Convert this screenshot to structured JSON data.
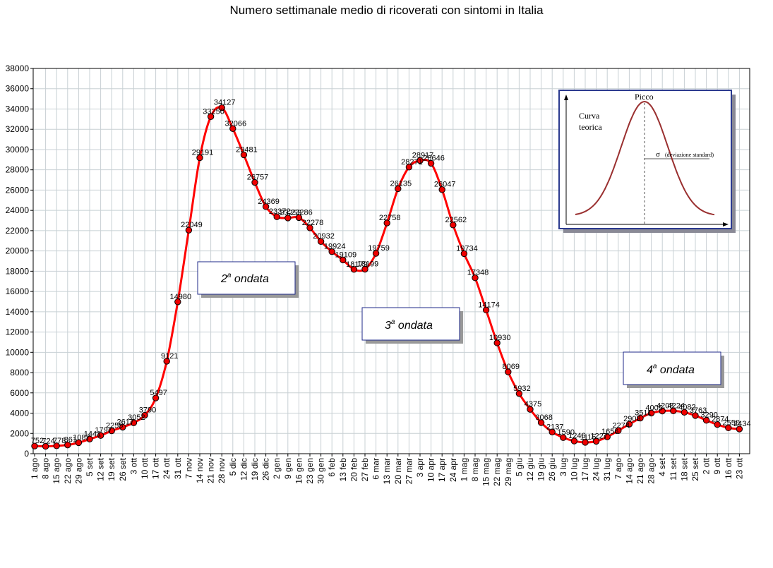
{
  "chart_data": {
    "type": "line",
    "title": "Numero settimanale medio di ricoverati con sintomi in Italia",
    "xlabel": "",
    "ylabel": "",
    "ylim": [
      0,
      38000
    ],
    "ytick_step": 2000,
    "grid": true,
    "categories": [
      "1 ago",
      "8 ago",
      "15 ago",
      "22 ago",
      "29 ago",
      "5 set",
      "12 set",
      "19 set",
      "26 set",
      "3 ott",
      "10 ott",
      "17 ott",
      "24 ott",
      "31 ott",
      "7 nov",
      "14 nov",
      "21 nov",
      "28 nov",
      "5 dic",
      "12 dic",
      "19 dic",
      "26 dic",
      "2 gen",
      "9 gen",
      "16 gen",
      "23 gen",
      "30 gen",
      "6 feb",
      "13 feb",
      "20 feb",
      "27 feb",
      "6 mar",
      "13 mar",
      "20 mar",
      "27 mar",
      "3 apr",
      "10 apr",
      "17 apr",
      "24 apr",
      "1 mag",
      "8 mag",
      "15 mag",
      "22 mag",
      "29 mag",
      "5 giu",
      "12 giu",
      "19 giu",
      "26 giu",
      "3 lug",
      "10 lug",
      "17 lug",
      "24 lug",
      "31 lug",
      "7 ago",
      "14 ago",
      "21 ago",
      "28 ago",
      "4 set",
      "11 set",
      "18 set",
      "25 set",
      "2 ott",
      "9 ott",
      "16 ott",
      "23 ott"
    ],
    "series": [
      {
        "values": [
          752,
          724,
          778,
          861,
          1087,
          1441,
          1797,
          2255,
          2617,
          3052,
          3790,
          5497,
          9121,
          14980,
          22049,
          29191,
          33250,
          34127,
          32066,
          29481,
          26757,
          24369,
          23372,
          23253,
          23286,
          22278,
          20932,
          19924,
          19109,
          18179,
          18199,
          19759,
          22758,
          26135,
          28271,
          28917,
          28646,
          26047,
          22562,
          19734,
          17348,
          14174,
          10930,
          8069,
          5932,
          4375,
          3068,
          2137,
          1590,
          1246,
          1115,
          1227,
          1656,
          2274,
          2908,
          3511,
          4005,
          4208,
          4224,
          4082,
          3763,
          3290,
          2874,
          2550,
          2434
        ],
        "labels": [
          "752",
          "724",
          "778",
          "861",
          "1087",
          "1441",
          "1797",
          "2255",
          "2617",
          "3052",
          "3790",
          "5497",
          "9121",
          "14980",
          "22049",
          "29191",
          "33250",
          "34127",
          "32066",
          "29481",
          "26757",
          "24369",
          "23372",
          "23253",
          "23286",
          "22278",
          "20932",
          "19924",
          "19109",
          "18179",
          "18199",
          "19759",
          "22758",
          "26135",
          "28271",
          "28917",
          "28646",
          "26047",
          "22562",
          "19734",
          "17348",
          "14174",
          "10930",
          "8069",
          "5932",
          "4375",
          "3068",
          "2137",
          "1590",
          "1246",
          "1115",
          "1227",
          "1656",
          "2274",
          "2908",
          "3511",
          "4005",
          "4208",
          "4224",
          "4082",
          "3763",
          "3290",
          "2874",
          "2550",
          "2434"
        ]
      }
    ],
    "line_color": "#ff0000",
    "marker_color": "#ee0000",
    "annotations": {
      "wave2": {
        "ordinal": "2",
        "sup": "a",
        "word": " ondata"
      },
      "wave3": {
        "ordinal": "3",
        "sup": "a",
        "word": " ondata"
      },
      "wave4": {
        "ordinal": "4",
        "sup": "a",
        "word": " ondata"
      }
    },
    "inset": {
      "peak_label": "Picco",
      "curve_label_1": "Curva",
      "curve_label_2": "teorica",
      "sigma_symbol": "σ",
      "sigma_label": "(deviazione standard)"
    }
  }
}
